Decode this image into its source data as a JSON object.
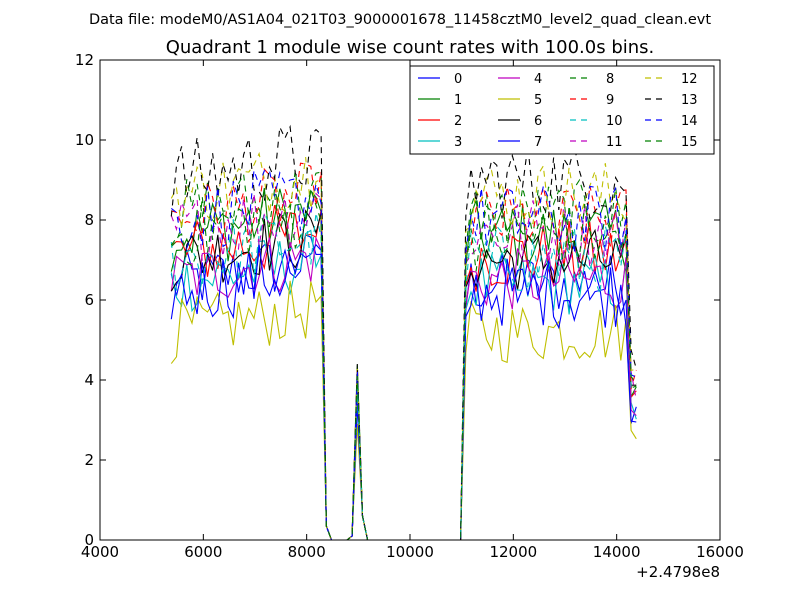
{
  "header": {
    "data_file": "Data file: modeM0/AS1A04_021T03_9000001678_11458cztM0_level2_quad_clean.evt"
  },
  "chart_data": {
    "type": "line",
    "title": "Quadrant 1 module wise count rates with 100.0s bins.",
    "xlabel": "",
    "ylabel": "",
    "xlim": [
      4000,
      16000
    ],
    "ylim": [
      0,
      12
    ],
    "xticks": [
      4000,
      6000,
      8000,
      10000,
      12000,
      14000,
      16000
    ],
    "yticks": [
      0,
      2,
      4,
      6,
      8,
      10,
      12
    ],
    "x_offset_label": "+2.4798e8",
    "grid": false,
    "legend_position": "top-right",
    "legend_columns": 4,
    "x": [
      5380,
      5480,
      5580,
      5680,
      5780,
      5880,
      5980,
      6080,
      6180,
      6280,
      6380,
      6480,
      6580,
      6680,
      6780,
      6880,
      6980,
      7080,
      7180,
      7280,
      7380,
      7480,
      7580,
      7680,
      7780,
      7880,
      7980,
      8080,
      8180,
      8280,
      8380,
      8480,
      8580,
      8680,
      8780,
      8880,
      8980,
      9080,
      9180,
      9280,
      9380,
      9480,
      9580,
      9680,
      9780,
      9880,
      9980,
      10080,
      10180,
      10280,
      10380,
      10480,
      10580,
      10680,
      10780,
      10880,
      10980,
      11080,
      11180,
      11280,
      11380,
      11480,
      11580,
      11680,
      11780,
      11880,
      11980,
      12080,
      12180,
      12280,
      12380,
      12480,
      12580,
      12680,
      12780,
      12880,
      12980,
      13080,
      13180,
      13280,
      13380,
      13480,
      13580,
      13680,
      13780,
      13880,
      13980,
      14080,
      14180,
      14280,
      14380
    ],
    "series": [
      {
        "name": "0",
        "color": "#0000ff",
        "dash": "solid",
        "base": 6.4,
        "amp": 0.8,
        "peak": 3.6
      },
      {
        "name": "1",
        "color": "#008000",
        "dash": "solid",
        "base": 7.6,
        "amp": 0.9,
        "peak": 4.2
      },
      {
        "name": "2",
        "color": "#ff0000",
        "dash": "solid",
        "base": 7.1,
        "amp": 0.9,
        "peak": 4.0
      },
      {
        "name": "3",
        "color": "#00bfbf",
        "dash": "solid",
        "base": 6.4,
        "amp": 0.8,
        "peak": 3.5
      },
      {
        "name": "4",
        "color": "#bf00bf",
        "dash": "solid",
        "base": 6.5,
        "amp": 0.8,
        "peak": 3.6
      },
      {
        "name": "5",
        "color": "#bfbf00",
        "dash": "solid",
        "base": 5.2,
        "amp": 0.8,
        "peak": 2.9
      },
      {
        "name": "6",
        "color": "#000000",
        "dash": "solid",
        "base": 7.0,
        "amp": 0.8,
        "peak": 3.9
      },
      {
        "name": "7",
        "color": "#0000ff",
        "dash": "solid",
        "base": 6.2,
        "amp": 0.9,
        "peak": 3.4
      },
      {
        "name": "8",
        "color": "#008000",
        "dash": "dashed",
        "base": 8.1,
        "amp": 0.9,
        "peak": 4.4
      },
      {
        "name": "9",
        "color": "#ff0000",
        "dash": "dashed",
        "base": 8.0,
        "amp": 0.9,
        "peak": 4.3
      },
      {
        "name": "10",
        "color": "#00bfbf",
        "dash": "dashed",
        "base": 7.0,
        "amp": 0.9,
        "peak": 3.8
      },
      {
        "name": "11",
        "color": "#bf00bf",
        "dash": "dashed",
        "base": 7.7,
        "amp": 0.9,
        "peak": 4.1
      },
      {
        "name": "12",
        "color": "#bfbf00",
        "dash": "dashed",
        "base": 8.6,
        "amp": 0.9,
        "peak": 4.3
      },
      {
        "name": "13",
        "color": "#000000",
        "dash": "dashed",
        "base": 9.0,
        "amp": 1.0,
        "peak": 4.4
      },
      {
        "name": "14",
        "color": "#0000ff",
        "dash": "dashed",
        "base": 8.0,
        "amp": 0.9,
        "peak": 4.2
      },
      {
        "name": "15",
        "color": "#008000",
        "dash": "dashed",
        "base": 7.6,
        "amp": 0.9,
        "peak": 4.1
      }
    ]
  }
}
